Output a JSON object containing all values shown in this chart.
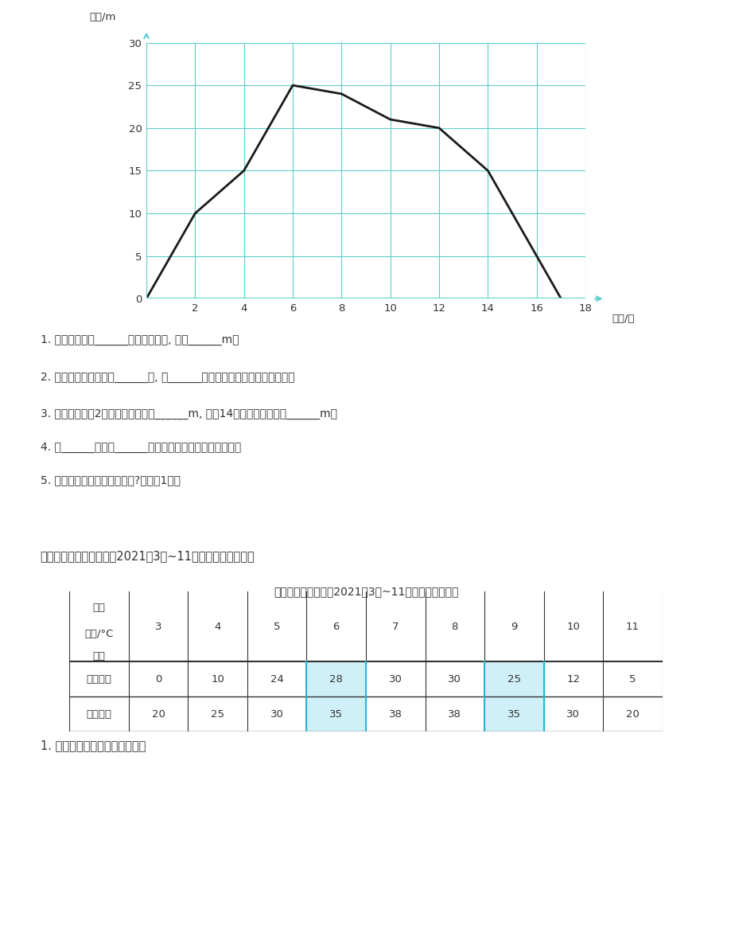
{
  "line_x": [
    0,
    2,
    4,
    6,
    8,
    10,
    12,
    14,
    16,
    17
  ],
  "line_y": [
    0,
    10,
    15,
    25,
    24,
    21,
    20,
    15,
    5,
    0
  ],
  "x_label": "时间/秒",
  "y_label": "高度/m",
  "x_min": 0,
  "x_max": 18,
  "y_min": 0,
  "y_max": 30,
  "x_ticks": [
    0,
    2,
    4,
    6,
    8,
    10,
    12,
    14,
    16,
    18
  ],
  "y_ticks": [
    0,
    5,
    10,
    15,
    20,
    25,
    30
  ],
  "grid_color": "#5dcfcf",
  "line_color": "#1a1a1a",
  "axis_color": "#5dcfcf",
  "bg_color": "#ffffff",
  "q1": "1. 模型飞机在第______秒时飞得最高, 达到______m。",
  "q2": "2. 模型飞机大约飞行了______秒, 前______秒模型飞机的高度呈上升趋势。",
  "q3": "3. 模型飞机在第2秒时的飞行高度是______m, 在第14秒时的飞行高度是______m。",
  "q4": "4. 第______秒到第______秒模型飞机在同一高度上飞行。",
  "q5": "5. 从图中还可获得其他信息吗?请写出1条。",
  "section4_title": "四、北方甲市和南方乙市2021年3月~11月平均气温如下表。",
  "table_title": "北方甲市和南方乙市2021年3月~11月平均气温统计表",
  "months": [
    3,
    4,
    5,
    6,
    7,
    8,
    9,
    10,
    11
  ],
  "city1_name": "北方甲市",
  "city2_name": "南方乙市",
  "city1_temps": [
    0,
    10,
    24,
    28,
    30,
    30,
    25,
    12,
    5
  ],
  "city2_temps": [
    20,
    25,
    30,
    35,
    38,
    38,
    35,
    30,
    20
  ],
  "col1_label1": "月份",
  "col1_label2": "气温/°C",
  "col1_label3": "城市",
  "note": "1. 根据统计表绘制折线统计图。",
  "highlight_col_indices": [
    3,
    6
  ],
  "highlight_color": "#29b6d6"
}
